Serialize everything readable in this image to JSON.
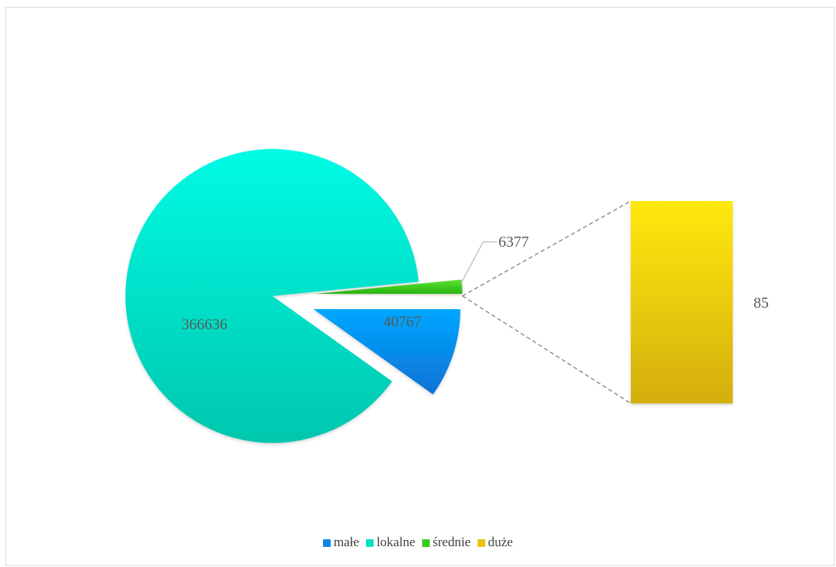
{
  "chart_data": {
    "type": "bar-of-pie",
    "title": "",
    "categories": [
      "małe",
      "lokalne",
      "średnie",
      "duże"
    ],
    "values": [
      40767,
      366636,
      6377,
      85
    ],
    "secondary_categories": [
      "duże"
    ],
    "legend_position": "bottom",
    "colors": {
      "małe": "#0a86e0",
      "lokalne": "#05e0c8",
      "średnie": "#3bcc1a",
      "duże": "#e6c610"
    },
    "labels": {
      "małe": "40767",
      "lokalne": "366636",
      "średnie": "6377",
      "duże": "85"
    }
  }
}
